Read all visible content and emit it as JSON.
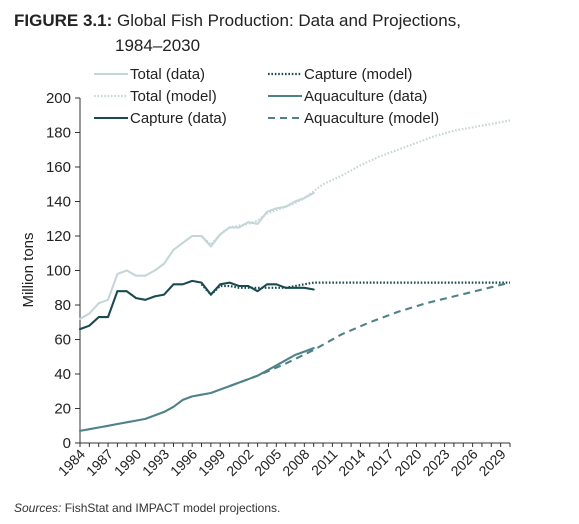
{
  "title": {
    "label": "FIGURE 3.1:",
    "text": "Global Fish Production: Data and Projections,",
    "text2": "1984–2030"
  },
  "source": {
    "label": "Sources:",
    "text": " FishStat and IMPACT model projections."
  },
  "chart_data": {
    "type": "line",
    "ylabel": "Million tons",
    "xlabel": "",
    "xlim": [
      1984,
      2030
    ],
    "ylim": [
      0,
      200
    ],
    "yticks": [
      0,
      20,
      40,
      60,
      80,
      100,
      120,
      140,
      160,
      180,
      200
    ],
    "xticks": [
      1984,
      1987,
      1990,
      1993,
      1996,
      1999,
      2002,
      2005,
      2008,
      2011,
      2014,
      2017,
      2020,
      2023,
      2026,
      2029
    ],
    "legend_position": "top",
    "colors": {
      "total": "#c5d6d8",
      "capture": "#194a4f",
      "aquaculture": "#4f8288"
    },
    "series": [
      {
        "name": "Total (data)",
        "style": "solid",
        "color": "#c5d6d8",
        "x": [
          1984,
          1985,
          1986,
          1987,
          1988,
          1989,
          1990,
          1991,
          1992,
          1993,
          1994,
          1995,
          1996,
          1997,
          1998,
          1999,
          2000,
          2001,
          2002,
          2003,
          2004,
          2005,
          2006,
          2007,
          2008,
          2009
        ],
        "y": [
          72,
          75,
          81,
          83,
          98,
          100,
          97,
          97,
          100,
          104,
          112,
          116,
          120,
          120,
          114,
          121,
          125,
          125,
          128,
          127,
          134,
          136,
          137,
          140,
          142,
          145
        ]
      },
      {
        "name": "Total (model)",
        "style": "dotted",
        "color": "#c5d6d8",
        "x": [
          1997,
          1998,
          1999,
          2000,
          2001,
          2002,
          2003,
          2004,
          2005,
          2006,
          2007,
          2008,
          2009,
          2010,
          2012,
          2014,
          2016,
          2018,
          2020,
          2022,
          2024,
          2026,
          2028,
          2030
        ],
        "y": [
          120,
          115,
          121,
          125,
          126,
          127,
          129,
          133,
          135,
          137,
          139,
          142,
          146,
          150,
          155,
          161,
          166,
          170,
          174,
          178,
          181,
          183,
          185,
          187
        ]
      },
      {
        "name": "Capture (data)",
        "style": "solid",
        "color": "#194a4f",
        "x": [
          1984,
          1985,
          1986,
          1987,
          1988,
          1989,
          1990,
          1991,
          1992,
          1993,
          1994,
          1995,
          1996,
          1997,
          1998,
          1999,
          2000,
          2001,
          2002,
          2003,
          2004,
          2005,
          2006,
          2007,
          2008,
          2009
        ],
        "y": [
          66,
          68,
          73,
          73,
          88,
          88,
          84,
          83,
          85,
          86,
          92,
          92,
          94,
          93,
          86,
          92,
          93,
          91,
          91,
          88,
          92,
          92,
          90,
          90,
          90,
          89
        ]
      },
      {
        "name": "Capture (model)",
        "style": "dotted",
        "color": "#194a4f",
        "x": [
          1997,
          1998,
          1999,
          2000,
          2001,
          2002,
          2003,
          2004,
          2005,
          2006,
          2007,
          2008,
          2009,
          2010,
          2012,
          2015,
          2020,
          2025,
          2030
        ],
        "y": [
          92,
          86,
          91,
          91,
          90,
          90,
          90,
          90,
          90,
          90,
          91,
          92,
          93,
          93,
          93,
          93,
          93,
          93,
          93
        ]
      },
      {
        "name": "Aquaculture (data)",
        "style": "solid",
        "color": "#4f8288",
        "x": [
          1984,
          1985,
          1986,
          1987,
          1988,
          1989,
          1990,
          1991,
          1992,
          1993,
          1994,
          1995,
          1996,
          1997,
          1998,
          1999,
          2000,
          2001,
          2002,
          2003,
          2004,
          2005,
          2006,
          2007,
          2008,
          2009
        ],
        "y": [
          7,
          8,
          9,
          10,
          11,
          12,
          13,
          14,
          16,
          18,
          21,
          25,
          27,
          28,
          29,
          31,
          33,
          35,
          37,
          39,
          42,
          45,
          48,
          51,
          53,
          55
        ]
      },
      {
        "name": "Aquaculture (model)",
        "style": "dashed",
        "color": "#4f8288",
        "x": [
          2000,
          2003,
          2006,
          2009,
          2012,
          2015,
          2018,
          2021,
          2024,
          2027,
          2030
        ],
        "y": [
          33,
          39,
          46,
          54,
          63,
          70,
          76,
          81,
          85,
          89,
          93
        ]
      }
    ]
  }
}
